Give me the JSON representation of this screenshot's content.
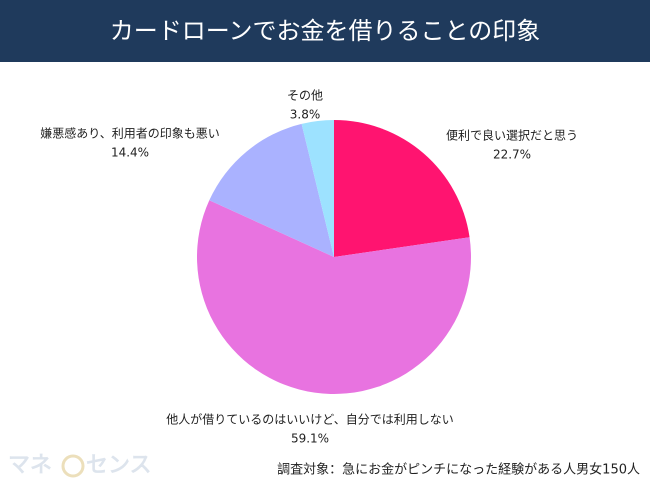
{
  "chart_data": {
    "type": "pie",
    "title": "カードローンでお金を借りることの印象",
    "categories": [
      "便利で良い選択だと思う",
      "他人が借りているのはいいけど、自分では利用しない",
      "嫌悪感あり、利用者の印象も悪い",
      "その他"
    ],
    "values": [
      22.7,
      59.1,
      14.4,
      3.8
    ],
    "value_labels": [
      "22.7%",
      "59.1%",
      "14.4%",
      "3.8%"
    ],
    "colors": [
      "#ff1470",
      "#e873e0",
      "#aab2ff",
      "#9de2ff"
    ],
    "note": "調査対象：急にお金がピンチになった経験がある人男女150人"
  },
  "logo": [
    "マネ",
    "センス"
  ]
}
